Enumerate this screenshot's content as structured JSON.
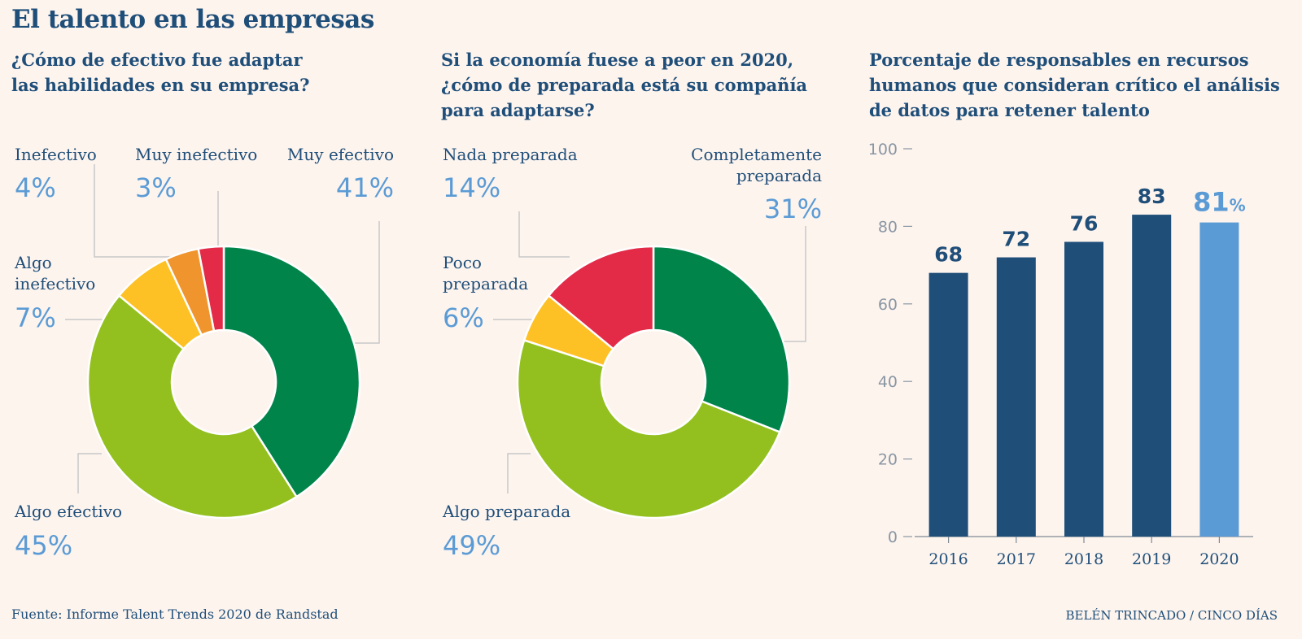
{
  "title": "El talento en las empresas",
  "footer": {
    "source": "Fuente: Informe Talent Trends 2020 de Randstad",
    "credit": "BELÉN TRINCADO / CINCO DÍAS"
  },
  "chart_data": [
    {
      "type": "pie",
      "title": "¿Cómo de efectivo fue adaptar las habilidades en su empresa?",
      "title_lines": [
        "¿Cómo de efectivo fue adaptar",
        "las habilidades en su empresa?"
      ],
      "slices": [
        {
          "label": "Muy efectivo",
          "value": 41,
          "pct_text": "41%",
          "color": "#00844a"
        },
        {
          "label": "Algo efectivo",
          "value": 45,
          "pct_text": "45%",
          "color": "#93c01f"
        },
        {
          "label": "Algo inefectivo",
          "label_lines": [
            "Algo",
            "inefectivo"
          ],
          "value": 7,
          "pct_text": "7%",
          "color": "#fdc125"
        },
        {
          "label": "Inefectivo",
          "value": 4,
          "pct_text": "4%",
          "color": "#f0952d"
        },
        {
          "label": "Muy inefectivo",
          "value": 3,
          "pct_text": "3%",
          "color": "#e32b48"
        }
      ]
    },
    {
      "type": "pie",
      "title": "Si la economía fuese a peor en 2020, ¿cómo de preparada está su compañía para adaptarse?",
      "title_lines": [
        "Si la economía fuese a peor en 2020,",
        "¿cómo de preparada está su compañía",
        "para adaptarse?"
      ],
      "slices": [
        {
          "label": "Completamente preparada",
          "label_lines": [
            "Completamente",
            "preparada"
          ],
          "value": 31,
          "pct_text": "31%",
          "color": "#00844a"
        },
        {
          "label": "Algo preparada",
          "value": 49,
          "pct_text": "49%",
          "color": "#93c01f"
        },
        {
          "label": "Poco preparada",
          "label_lines": [
            "Poco",
            "preparada"
          ],
          "value": 6,
          "pct_text": "6%",
          "color": "#fdc125"
        },
        {
          "label": "Nada preparada",
          "value": 14,
          "pct_text": "14%",
          "color": "#e32b48"
        }
      ]
    },
    {
      "type": "bar",
      "title": "Porcentaje de responsables en recursos humanos que consideran crítico el análisis de datos para retener talento",
      "title_lines": [
        "Porcentaje de responsables en recursos",
        "humanos que consideran crítico el análisis",
        "de datos para retener talento"
      ],
      "categories": [
        "2016",
        "2017",
        "2018",
        "2019",
        "2020"
      ],
      "values": [
        68,
        72,
        76,
        83,
        81
      ],
      "value_labels": [
        "68",
        "72",
        "76",
        "83",
        "81"
      ],
      "last_suffix": "%",
      "bar_colors": [
        "#1f4e79",
        "#1f4e79",
        "#1f4e79",
        "#1f4e79",
        "#5b9bd5"
      ],
      "yticks": [
        "0",
        "20",
        "40",
        "60",
        "80",
        "100"
      ],
      "ylim": [
        0,
        100
      ]
    }
  ]
}
